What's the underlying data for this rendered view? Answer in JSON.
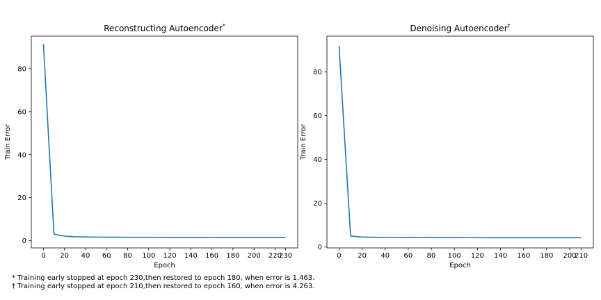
{
  "chart_data": [
    {
      "type": "line",
      "title": "Reconstructing Autoencoder",
      "title_mark": "*",
      "xlabel": "Epoch",
      "ylabel": "Train Error",
      "xlim": [
        -11.5,
        241.5
      ],
      "ylim": [
        -3.4,
        95.2
      ],
      "xticks": [
        0,
        20,
        40,
        60,
        80,
        100,
        120,
        140,
        160,
        180,
        200,
        220,
        230
      ],
      "yticks": [
        0,
        20,
        40,
        60,
        80
      ],
      "grid": false,
      "line_color": "#1f77b4",
      "series": [
        {
          "x": [
            0,
            10,
            20,
            30,
            40,
            50,
            60,
            70,
            80,
            90,
            100,
            110,
            120,
            130,
            140,
            150,
            160,
            170,
            180,
            190,
            200,
            210,
            220,
            230
          ],
          "values": [
            91.5,
            3.0,
            2.1,
            1.8,
            1.7,
            1.65,
            1.6,
            1.58,
            1.56,
            1.55,
            1.54,
            1.53,
            1.52,
            1.51,
            1.5,
            1.5,
            1.49,
            1.48,
            1.47,
            1.47,
            1.47,
            1.47,
            1.47,
            1.47
          ]
        }
      ]
    },
    {
      "type": "line",
      "title": "Denoising Autoencoder",
      "title_mark": "†",
      "xlabel": "Epoch",
      "ylabel": "Train Error",
      "xlim": [
        -10.5,
        220.5
      ],
      "ylim": [
        -0.4,
        96.4
      ],
      "xticks": [
        0,
        20,
        40,
        60,
        80,
        100,
        120,
        140,
        160,
        180,
        200,
        210
      ],
      "yticks": [
        0,
        20,
        40,
        60,
        80
      ],
      "grid": false,
      "line_color": "#1f77b4",
      "series": [
        {
          "x": [
            0,
            10,
            20,
            30,
            40,
            50,
            60,
            70,
            80,
            90,
            100,
            110,
            120,
            130,
            140,
            150,
            160,
            170,
            180,
            190,
            200,
            210
          ],
          "values": [
            92.0,
            5.0,
            4.6,
            4.45,
            4.4,
            4.36,
            4.34,
            4.32,
            4.31,
            4.3,
            4.29,
            4.28,
            4.28,
            4.27,
            4.27,
            4.27,
            4.26,
            4.26,
            4.26,
            4.26,
            4.26,
            4.26
          ]
        }
      ]
    }
  ],
  "footnotes": [
    "* Training early stopped at epoch 230,then restored to epoch 180, when error is 1.463.",
    "† Training early stopped at epoch 210,then restored to epoch 160, when error is 4.263."
  ]
}
